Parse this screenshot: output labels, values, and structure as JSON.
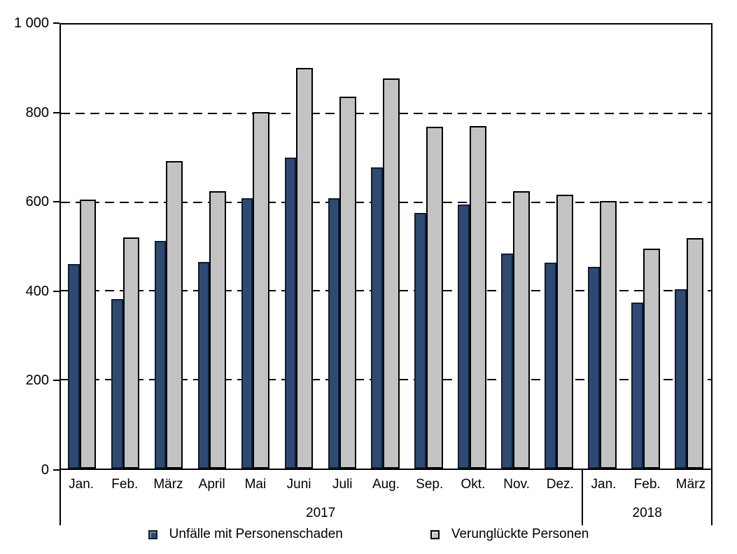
{
  "chart_data": {
    "type": "bar",
    "title": "",
    "xlabel": "",
    "ylabel": "",
    "categories": [
      "Jan.",
      "Feb.",
      "März",
      "April",
      "Mai",
      "Juni",
      "Juli",
      "Aug.",
      "Sep.",
      "Okt.",
      "Nov.",
      "Dez.",
      "Jan.",
      "Feb.",
      "März"
    ],
    "groups": [
      {
        "label": "2017",
        "span": 12
      },
      {
        "label": "2018",
        "span": 3
      }
    ],
    "series": [
      {
        "name": "Unfälle mit Personenschaden",
        "color": "#2e4a72",
        "border_color": "#101d36",
        "values": [
          460,
          382,
          512,
          465,
          609,
          700,
          609,
          679,
          575,
          594,
          485,
          464,
          455,
          374,
          404
        ]
      },
      {
        "name": "Verunglückte Personen",
        "color": "#c3c3c3",
        "border_color": "#000000",
        "values": [
          605,
          520,
          693,
          624,
          803,
          903,
          838,
          878,
          770,
          772,
          624,
          617,
          602,
          496,
          519
        ]
      }
    ],
    "ylim": [
      0,
      1000
    ],
    "ytick_interval": 200,
    "ytick_labels": [
      "0",
      "200",
      "400",
      "600",
      "800",
      "1 000"
    ],
    "grid": "dashed-horizontal",
    "legend_position": "bottom"
  }
}
